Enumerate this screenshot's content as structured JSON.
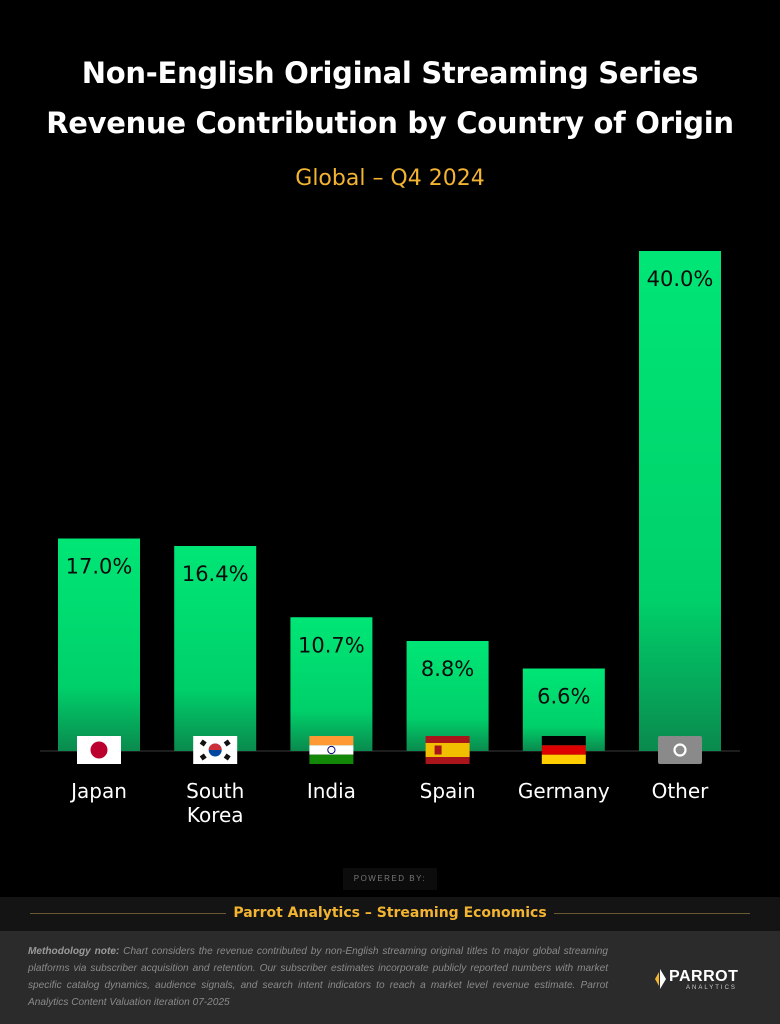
{
  "header": {
    "title_line1": "Non-English Original Streaming Series",
    "title_line2": "Revenue Contribution by Country of Origin",
    "subtitle": "Global  – Q4 2024"
  },
  "colors": {
    "bar_top": "#00e676",
    "bar_bottom": "#0a8a4e",
    "accent": "#f2b431",
    "background": "#000000"
  },
  "chart_data": {
    "type": "bar",
    "title": "Non-English Original Streaming Series Revenue Contribution by Country of Origin",
    "subtitle": "Global  – Q4 2024",
    "categories": [
      "Japan",
      "South Korea",
      "India",
      "Spain",
      "Germany",
      "Other"
    ],
    "category_lines": [
      [
        "Japan"
      ],
      [
        "South",
        "Korea"
      ],
      [
        "India"
      ],
      [
        "Spain"
      ],
      [
        "Germany"
      ],
      [
        "Other"
      ]
    ],
    "values": [
      17.0,
      16.4,
      10.7,
      8.8,
      6.6,
      40.0
    ],
    "value_labels": [
      "17.0%",
      "16.4%",
      "10.7%",
      "8.8%",
      "6.6%",
      "40.0%"
    ],
    "flag_icons": [
      "japan-flag-icon",
      "south-korea-flag-icon",
      "india-flag-icon",
      "spain-flag-icon",
      "germany-flag-icon",
      "other-globe-icon"
    ],
    "unit": "%",
    "ylim": [
      0,
      40
    ],
    "grid": false,
    "legend": "none"
  },
  "footer": {
    "powered_by": "POWERED BY:",
    "brand": "Parrot Analytics – Streaming Economics",
    "methodology_label": "Methodology note:",
    "methodology_text": " Chart considers the revenue contributed by non-English streaming original titles to major global streaming platforms via subscriber acquisition and retention. Our subscriber estimates incorporate publicly reported numbers with market specific catalog dynamics, audience signals, and search intent indicators to reach a market level revenue estimate. Parrot Analytics Content Valuation iteration 07-2025",
    "logo_text": "PARROT",
    "logo_sub": "ANALYTICS"
  }
}
